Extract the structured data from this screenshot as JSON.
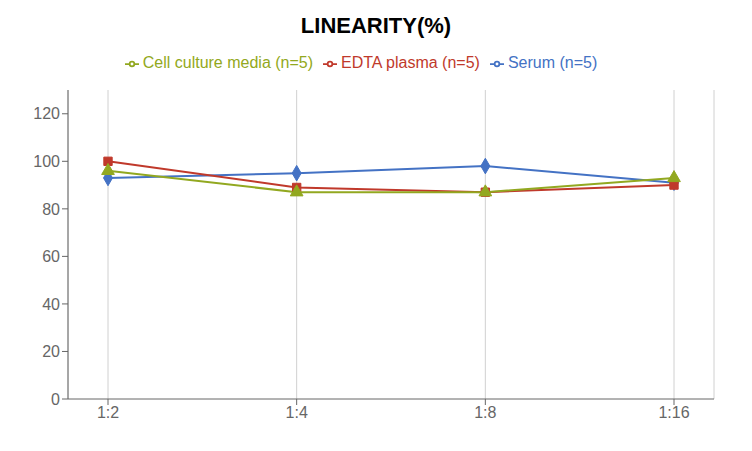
{
  "chart_data": {
    "type": "line",
    "title": "LINEARITY(%)",
    "categories": [
      "1:2",
      "1:4",
      "1:8",
      "1:16"
    ],
    "series": [
      {
        "name": "Serum (n=5)",
        "color": "#4472C4",
        "marker": "diamond",
        "values": [
          93,
          95,
          98,
          91
        ]
      },
      {
        "name": "EDTA plasma (n=5)",
        "color": "#C0392B",
        "marker": "square",
        "values": [
          100,
          89,
          87,
          90
        ]
      },
      {
        "name": "Cell culture media (n=5)",
        "color": "#92A820",
        "marker": "triangle",
        "values": [
          96,
          87,
          87,
          93
        ]
      }
    ],
    "ylim": [
      0,
      130
    ],
    "yticks": [
      0,
      20,
      40,
      60,
      80,
      100,
      120
    ],
    "grid": "x",
    "legend": "top"
  }
}
